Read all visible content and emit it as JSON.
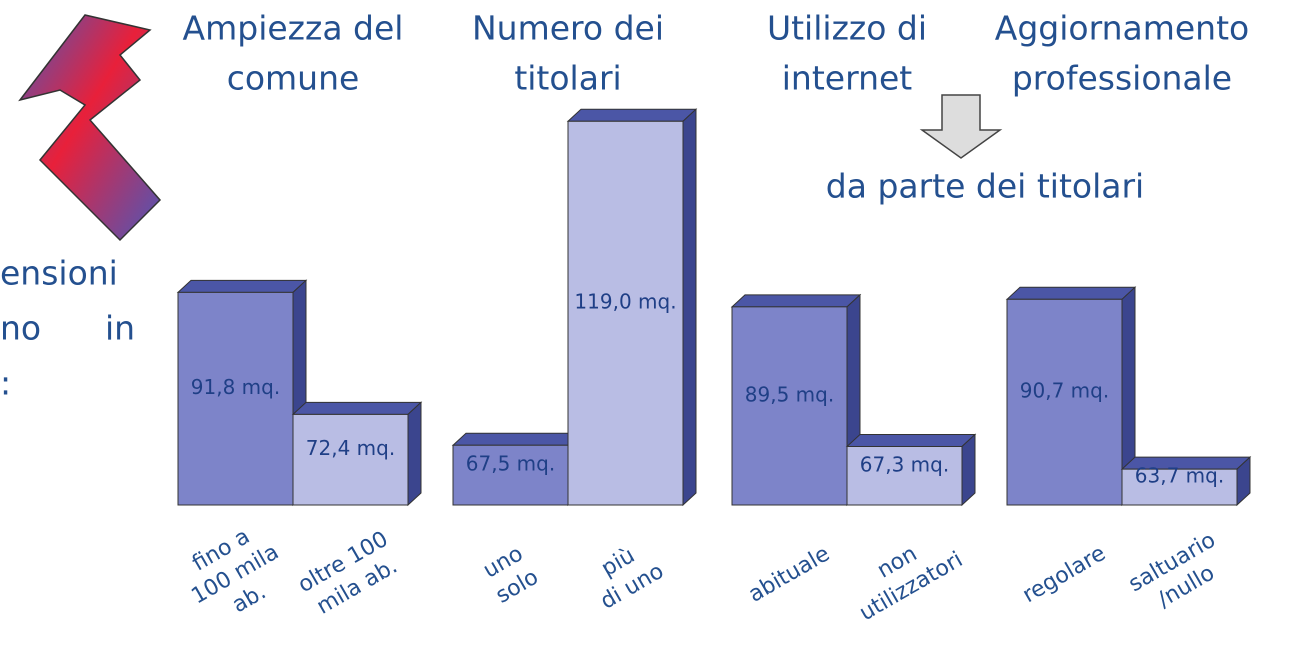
{
  "chart_data": {
    "type": "bar3d",
    "groups": [
      {
        "title": [
          "Ampiezza del",
          "comune"
        ]
      },
      {
        "title": [
          "Numero dei",
          "titolari"
        ]
      },
      {
        "title": [
          "Utilizzo di",
          "internet"
        ]
      },
      {
        "title": [
          "Aggiornamento",
          "professionale"
        ]
      }
    ],
    "annotation": "da parte dei titolari",
    "side_text": [
      "ensioni",
      "no",
      "in",
      ":"
    ],
    "categories": [
      [
        "fino a",
        "100 mila",
        "ab."
      ],
      [
        "oltre 100",
        "mila ab."
      ],
      [
        "uno",
        "solo"
      ],
      [
        "più",
        "di uno"
      ],
      [
        "abituale"
      ],
      [
        "non",
        "utilizzatori"
      ],
      [
        "regolare"
      ],
      [
        "saltuario",
        "/nullo"
      ]
    ],
    "values": [
      91.8,
      72.4,
      67.5,
      119.0,
      89.5,
      67.3,
      90.7,
      63.7
    ],
    "value_labels": [
      "91,8 mq.",
      "72,4 mq.",
      "67,5 mq.",
      "119,0 mq.",
      "89,5 mq.",
      "67,3 mq.",
      "90,7 mq.",
      "63,7 mq."
    ],
    "colors": [
      "#7d84c9",
      "#b9bde4",
      "#7d84c9",
      "#b9bde4",
      "#7d84c9",
      "#b9bde4",
      "#7d84c9",
      "#b9bde4"
    ],
    "ylim": [
      58,
      120
    ]
  }
}
